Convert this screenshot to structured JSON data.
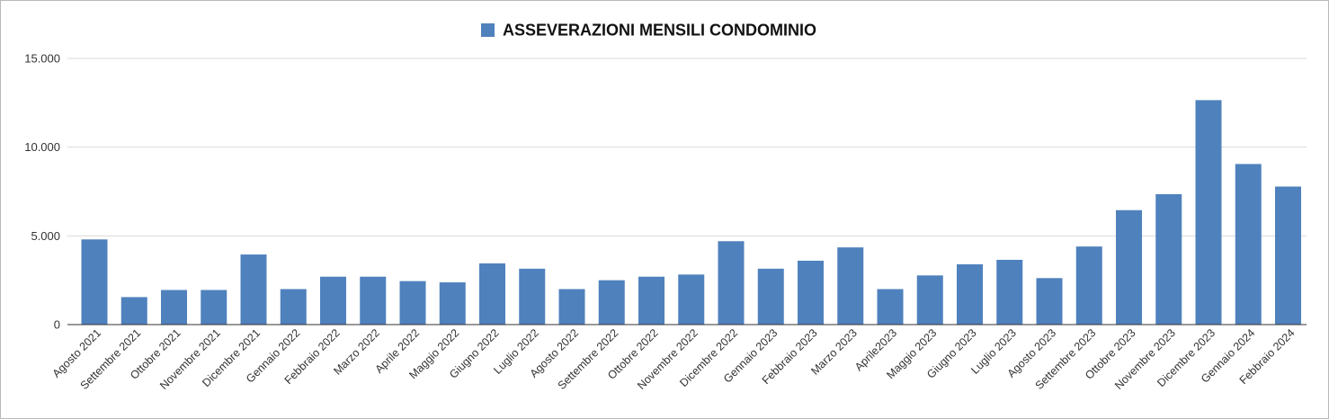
{
  "chart_data": {
    "type": "bar",
    "series": [
      {
        "name": "ASSEVERAZIONI MENSILI CONDOMINIO",
        "color": "#4f81bd",
        "values": [
          4800,
          1550,
          1950,
          1950,
          3950,
          2000,
          2700,
          2700,
          2450,
          2380,
          3450,
          3150,
          2000,
          2500,
          2700,
          2820,
          4700,
          3150,
          3600,
          4350,
          2000,
          2770,
          3400,
          3650,
          2620,
          4400,
          6450,
          7350,
          12650,
          9050,
          7780
        ]
      }
    ],
    "categories": [
      "Agosto 2021",
      "Settembre 2021",
      "Ottobre 2021",
      "Novembre 2021",
      "Dicembre 2021",
      "Gennaio 2022",
      "Febbraio 2022",
      "Marzo 2022",
      "Aprile 2022",
      "Maggio 2022",
      "Giugno 2022",
      "Luglio 2022",
      "Agosto 2022",
      "Settembre 2022",
      "Ottobre 2022",
      "Novembre 2022",
      "Dicembre 2022",
      "Gennaio 2023",
      "Febbraio 2023",
      "Marzo 2023",
      "Aprile2023",
      "Maggio 2023",
      "Giugno 2023",
      "Luglio 2023",
      "Agosto 2023",
      "Settembre 2023",
      "Ottobre 2023",
      "Novembre 2023",
      "Dicembre 2023",
      "Gennaio 2024",
      "Febbraio 2024"
    ],
    "ylim": [
      0,
      15000
    ],
    "yticks": [
      0,
      5000,
      10000,
      15000
    ],
    "ytick_labels": [
      "0",
      "5.000",
      "10.000",
      "15.000"
    ],
    "xlabel": "",
    "ylabel": "",
    "grid": true,
    "legend_position": "top-center"
  }
}
